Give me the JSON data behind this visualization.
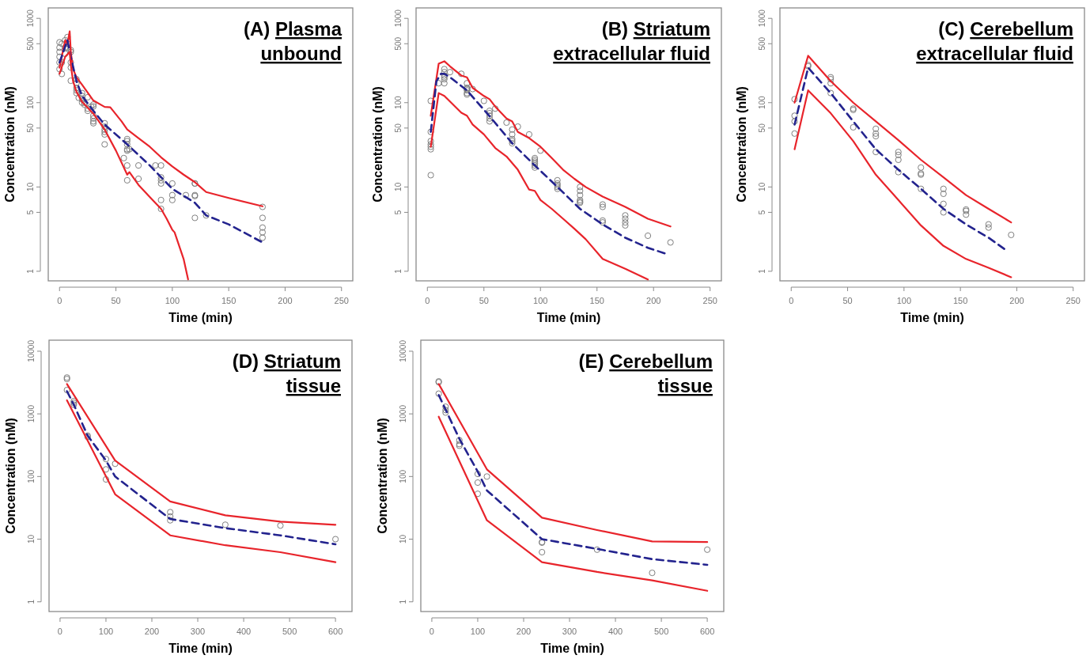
{
  "chart_data": [
    {
      "type": "scatter",
      "title": "(A) Plasma unbound",
      "xlabel": "Time (min)",
      "ylabel": "Concentration (nM)",
      "log": "y",
      "grid": false,
      "xlim": [
        -10,
        260
      ],
      "ylim": [
        0.77,
        1330
      ],
      "xticks": [
        0,
        50,
        100,
        150,
        200,
        250
      ],
      "yticks": [
        1,
        5,
        10,
        50,
        100,
        500,
        1000
      ],
      "series": [
        {
          "type": "scatter",
          "marker": "circle",
          "color": "#7f7f7f",
          "x": [
            0,
            0,
            0,
            0,
            0,
            0,
            2,
            2,
            2,
            5,
            5,
            5,
            7,
            7,
            7,
            10,
            10,
            10,
            10,
            10,
            15,
            15,
            15,
            15,
            15,
            17,
            20,
            20,
            20,
            20,
            22,
            22,
            25,
            25,
            25,
            28,
            30,
            30,
            30,
            30,
            30,
            30,
            40,
            40,
            40,
            40,
            40,
            40,
            57,
            60,
            60,
            60,
            60,
            60,
            60,
            60,
            62,
            70,
            70,
            85,
            90,
            90,
            90,
            90,
            90,
            90,
            100,
            100,
            100,
            112,
            120,
            120,
            120,
            120,
            120,
            130,
            180,
            180,
            180,
            180,
            180
          ],
          "values": [
            250,
            300,
            350,
            400,
            450,
            520,
            219,
            300,
            500,
            380,
            450,
            550,
            450,
            500,
            600,
            400,
            420,
            300,
            261,
            182,
            190,
            170,
            150,
            140,
            130,
            114,
            130,
            120,
            110,
            100,
            100,
            95,
            116,
            85,
            80,
            90,
            95,
            90,
            70,
            65,
            60,
            57,
            57,
            52,
            48,
            45,
            42,
            32,
            22,
            37,
            35,
            32,
            28,
            27,
            18,
            12,
            28,
            18,
            12.5,
            18,
            18,
            13,
            12,
            11,
            7,
            5.5,
            11,
            8,
            7,
            8,
            11,
            11,
            8,
            7.8,
            4.3,
            4.6,
            5.8,
            4.3,
            3.3,
            2.9,
            2.5
          ]
        },
        {
          "type": "line",
          "line_style": "solid",
          "marker": "none",
          "color": "#e8242b",
          "x": [
            0,
            5,
            7,
            9,
            10,
            12,
            15,
            20,
            30,
            40,
            45,
            55,
            60,
            70,
            80,
            90,
            100,
            110,
            120,
            130,
            150,
            180
          ],
          "values": [
            260,
            550,
            500,
            700,
            400,
            250,
            200,
            163,
            106,
            89,
            88,
            60,
            48,
            38,
            30,
            22.5,
            17.5,
            14,
            11.4,
            8.7,
            7.4,
            5.9
          ]
        },
        {
          "type": "line",
          "line_style": "dashed",
          "marker": "none",
          "color": "#23238e",
          "x": [
            0,
            7,
            10,
            15,
            20,
            30,
            40,
            60,
            80,
            100,
            120,
            130,
            150,
            180
          ],
          "values": [
            300,
            550,
            350,
            180,
            120,
            80,
            55,
            32,
            18,
            9.5,
            6.5,
            4.6,
            3.6,
            2.2
          ]
        },
        {
          "type": "line",
          "line_style": "solid",
          "marker": "none",
          "color": "#e8242b",
          "x": [
            0,
            5,
            9,
            10,
            12,
            15,
            20,
            30,
            40,
            50,
            60,
            62,
            70,
            80,
            90,
            95,
            100,
            102,
            110,
            114
          ],
          "values": [
            220,
            350,
            400,
            280,
            180,
            135,
            102,
            74,
            48,
            27,
            14,
            15,
            10.6,
            7.6,
            5.5,
            4.2,
            3.1,
            2.9,
            1.4,
            0.8
          ]
        }
      ]
    },
    {
      "type": "scatter",
      "title": "(B) Striatum extracellular fluid",
      "xlabel": "Time (min)",
      "ylabel": "Concentration (nM)",
      "log": "y",
      "grid": false,
      "xlim": [
        -10,
        260
      ],
      "ylim": [
        0.77,
        1330
      ],
      "xticks": [
        0,
        50,
        100,
        150,
        200,
        250
      ],
      "yticks": [
        1,
        5,
        10,
        50,
        100,
        500,
        1000
      ],
      "series": [
        {
          "type": "scatter",
          "marker": "circle",
          "color": "#7f7f7f",
          "x": [
            3,
            3,
            3,
            3,
            3,
            3,
            3,
            10,
            15,
            15,
            15,
            15,
            15,
            15,
            20,
            30,
            35,
            35,
            35,
            35,
            35,
            35,
            40,
            50,
            55,
            55,
            55,
            55,
            55,
            60,
            70,
            75,
            75,
            75,
            75,
            75,
            80,
            90,
            100,
            95,
            95,
            95,
            95,
            95,
            95,
            115,
            115,
            115,
            115,
            115,
            135,
            135,
            135,
            135,
            135,
            135,
            155,
            155,
            155,
            155,
            175,
            175,
            175,
            175,
            195,
            215
          ],
          "values": [
            105,
            45,
            35,
            32,
            30,
            28,
            13.8,
            170,
            250,
            230,
            210,
            200,
            190,
            170,
            230,
            220,
            170,
            150,
            145,
            140,
            130,
            125,
            145,
            105,
            80,
            75,
            70,
            65,
            60,
            85,
            58,
            48,
            42,
            37,
            35,
            33,
            52,
            42,
            27,
            22,
            21,
            20,
            19,
            18,
            17,
            12,
            11,
            10.5,
            10,
            9.5,
            10,
            9,
            8,
            7,
            6.7,
            6.5,
            6.2,
            5.8,
            4,
            3.8,
            4.6,
            4.2,
            3.8,
            3.5,
            2.64,
            2.2
          ]
        },
        {
          "type": "line",
          "line_style": "solid",
          "marker": "none",
          "color": "#e8242b",
          "x": [
            3,
            10,
            15,
            20,
            30,
            35,
            40,
            50,
            55,
            60,
            70,
            75,
            80,
            90,
            100,
            110,
            120,
            130,
            140,
            155,
            175,
            195,
            215
          ],
          "values": [
            70,
            290,
            310,
            270,
            210,
            200,
            150,
            120,
            110,
            90,
            65,
            60,
            45,
            38,
            30,
            22,
            16,
            12.5,
            10,
            7.7,
            5.8,
            4.2,
            3.4
          ]
        },
        {
          "type": "line",
          "line_style": "dashed",
          "marker": "none",
          "color": "#23238e",
          "x": [
            3,
            8,
            12,
            15,
            20,
            35,
            55,
            75,
            95,
            115,
            135,
            155,
            175,
            195,
            210
          ],
          "values": [
            45,
            180,
            220,
            220,
            200,
            140,
            69,
            33,
            18,
            10,
            5.5,
            3.6,
            2.5,
            1.9,
            1.63
          ]
        },
        {
          "type": "line",
          "line_style": "solid",
          "marker": "none",
          "color": "#e8242b",
          "x": [
            3,
            10,
            15,
            30,
            35,
            40,
            50,
            60,
            70,
            80,
            90,
            95,
            100,
            110,
            120,
            130,
            140,
            155,
            175,
            195
          ],
          "values": [
            30,
            130,
            120,
            76,
            70,
            55,
            42,
            29,
            23,
            16,
            9.3,
            9,
            7,
            5.5,
            4.2,
            3.2,
            2.4,
            1.4,
            1.07,
            0.8
          ]
        }
      ]
    },
    {
      "type": "scatter",
      "title": "(C) Cerebellum extracellular fluid",
      "xlabel": "Time (min)",
      "ylabel": "Concentration (nM)",
      "log": "y",
      "grid": false,
      "xlim": [
        -10,
        260
      ],
      "ylim": [
        0.77,
        1330
      ],
      "xticks": [
        0,
        50,
        100,
        150,
        200,
        250
      ],
      "yticks": [
        1,
        5,
        10,
        50,
        100,
        500,
        1000
      ],
      "series": [
        {
          "type": "scatter",
          "marker": "circle",
          "color": "#7f7f7f",
          "x": [
            3,
            3,
            3,
            3,
            15,
            15,
            35,
            35,
            35,
            35,
            55,
            55,
            55,
            75,
            75,
            75,
            75,
            95,
            95,
            95,
            95,
            115,
            115,
            115,
            115,
            135,
            135,
            135,
            135,
            155,
            155,
            155,
            175,
            175,
            195
          ],
          "values": [
            110,
            70,
            60,
            43,
            280,
            270,
            200,
            190,
            170,
            130,
            85,
            82,
            51,
            49,
            43,
            40,
            26,
            26,
            24,
            21,
            15,
            17,
            14.5,
            14,
            9.5,
            9.5,
            8.3,
            6.3,
            5,
            5.4,
            5.2,
            4.7,
            3.6,
            3.3,
            2.7
          ]
        },
        {
          "type": "line",
          "line_style": "solid",
          "marker": "none",
          "color": "#e8242b",
          "x": [
            3,
            15,
            35,
            55,
            75,
            95,
            115,
            135,
            155,
            175,
            195
          ],
          "values": [
            100,
            360,
            180,
            100,
            60,
            36,
            21,
            13,
            8,
            5.5,
            3.8
          ]
        },
        {
          "type": "line",
          "line_style": "dashed",
          "marker": "none",
          "color": "#23238e",
          "x": [
            3,
            15,
            35,
            55,
            75,
            95,
            115,
            135,
            155,
            175,
            190
          ],
          "values": [
            55,
            260,
            130,
            60,
            28,
            16,
            9.5,
            5.5,
            3.6,
            2.5,
            1.8
          ]
        },
        {
          "type": "line",
          "line_style": "solid",
          "marker": "none",
          "color": "#e8242b",
          "x": [
            3,
            15,
            35,
            55,
            75,
            95,
            115,
            135,
            155,
            175,
            195
          ],
          "values": [
            28,
            140,
            75,
            35,
            14,
            7,
            3.5,
            2,
            1.4,
            1.1,
            0.85
          ]
        }
      ]
    },
    {
      "type": "scatter",
      "title": "(D) Striatum tissue",
      "xlabel": "Time (min)",
      "ylabel": "Concentration (nM)",
      "log": "y",
      "grid": false,
      "xlim": [
        -24,
        636
      ],
      "ylim": [
        0.7,
        15000
      ],
      "xticks": [
        0,
        100,
        200,
        300,
        400,
        500,
        600
      ],
      "yticks": [
        1,
        10,
        100,
        1000,
        10000
      ],
      "series": [
        {
          "type": "scatter",
          "marker": "circle",
          "color": "#7f7f7f",
          "x": [
            15,
            15,
            15,
            30,
            30,
            30,
            60,
            60,
            100,
            100,
            100,
            120,
            240,
            240,
            240,
            360,
            480,
            600
          ],
          "values": [
            3800,
            3600,
            2400,
            1600,
            1500,
            1400,
            450,
            430,
            190,
            130,
            90,
            160,
            27,
            23,
            20,
            17,
            16.5,
            10
          ]
        },
        {
          "type": "line",
          "line_style": "solid",
          "marker": "none",
          "color": "#e8242b",
          "x": [
            15,
            120,
            240,
            360,
            480,
            600
          ],
          "values": [
            3000,
            180,
            40,
            24,
            19,
            17
          ]
        },
        {
          "type": "line",
          "line_style": "dashed",
          "marker": "none",
          "color": "#23238e",
          "x": [
            15,
            30,
            60,
            100,
            120,
            240,
            360,
            480,
            600
          ],
          "values": [
            2300,
            1400,
            450,
            180,
            100,
            21,
            15,
            11.5,
            8.3
          ]
        },
        {
          "type": "line",
          "line_style": "solid",
          "marker": "none",
          "color": "#e8242b",
          "x": [
            15,
            120,
            240,
            360,
            480,
            600
          ],
          "values": [
            1650,
            52,
            11.5,
            8,
            6.2,
            4.3
          ]
        }
      ]
    },
    {
      "type": "scatter",
      "title": "(E) Cerebellum tissue",
      "xlabel": "Time (min)",
      "ylabel": "Concentration (nM)",
      "log": "y",
      "grid": false,
      "xlim": [
        -24,
        636
      ],
      "ylim": [
        0.7,
        15000
      ],
      "xticks": [
        0,
        100,
        200,
        300,
        400,
        500,
        600
      ],
      "yticks": [
        1,
        10,
        100,
        1000,
        10000
      ],
      "series": [
        {
          "type": "scatter",
          "marker": "circle",
          "color": "#7f7f7f",
          "x": [
            15,
            15,
            15,
            30,
            30,
            30,
            60,
            60,
            60,
            100,
            100,
            100,
            120,
            240,
            240,
            240,
            360,
            480,
            600
          ],
          "values": [
            3300,
            3200,
            2100,
            1300,
            1150,
            1050,
            380,
            330,
            310,
            110,
            80,
            53,
            100,
            9,
            8.8,
            6.2,
            6.8,
            2.9,
            6.8
          ]
        },
        {
          "type": "line",
          "line_style": "solid",
          "marker": "none",
          "color": "#e8242b",
          "x": [
            15,
            120,
            240,
            360,
            480,
            600
          ],
          "values": [
            3000,
            130,
            22,
            14,
            9.2,
            9
          ]
        },
        {
          "type": "line",
          "line_style": "dashed",
          "marker": "none",
          "color": "#23238e",
          "x": [
            15,
            60,
            100,
            120,
            240,
            360,
            480,
            600
          ],
          "values": [
            2000,
            400,
            120,
            60,
            10,
            7,
            4.8,
            3.9
          ]
        },
        {
          "type": "line",
          "line_style": "solid",
          "marker": "none",
          "color": "#e8242b",
          "x": [
            15,
            120,
            240,
            360,
            480,
            600
          ],
          "values": [
            900,
            20,
            4.3,
            3,
            2.2,
            1.5
          ]
        }
      ]
    }
  ]
}
